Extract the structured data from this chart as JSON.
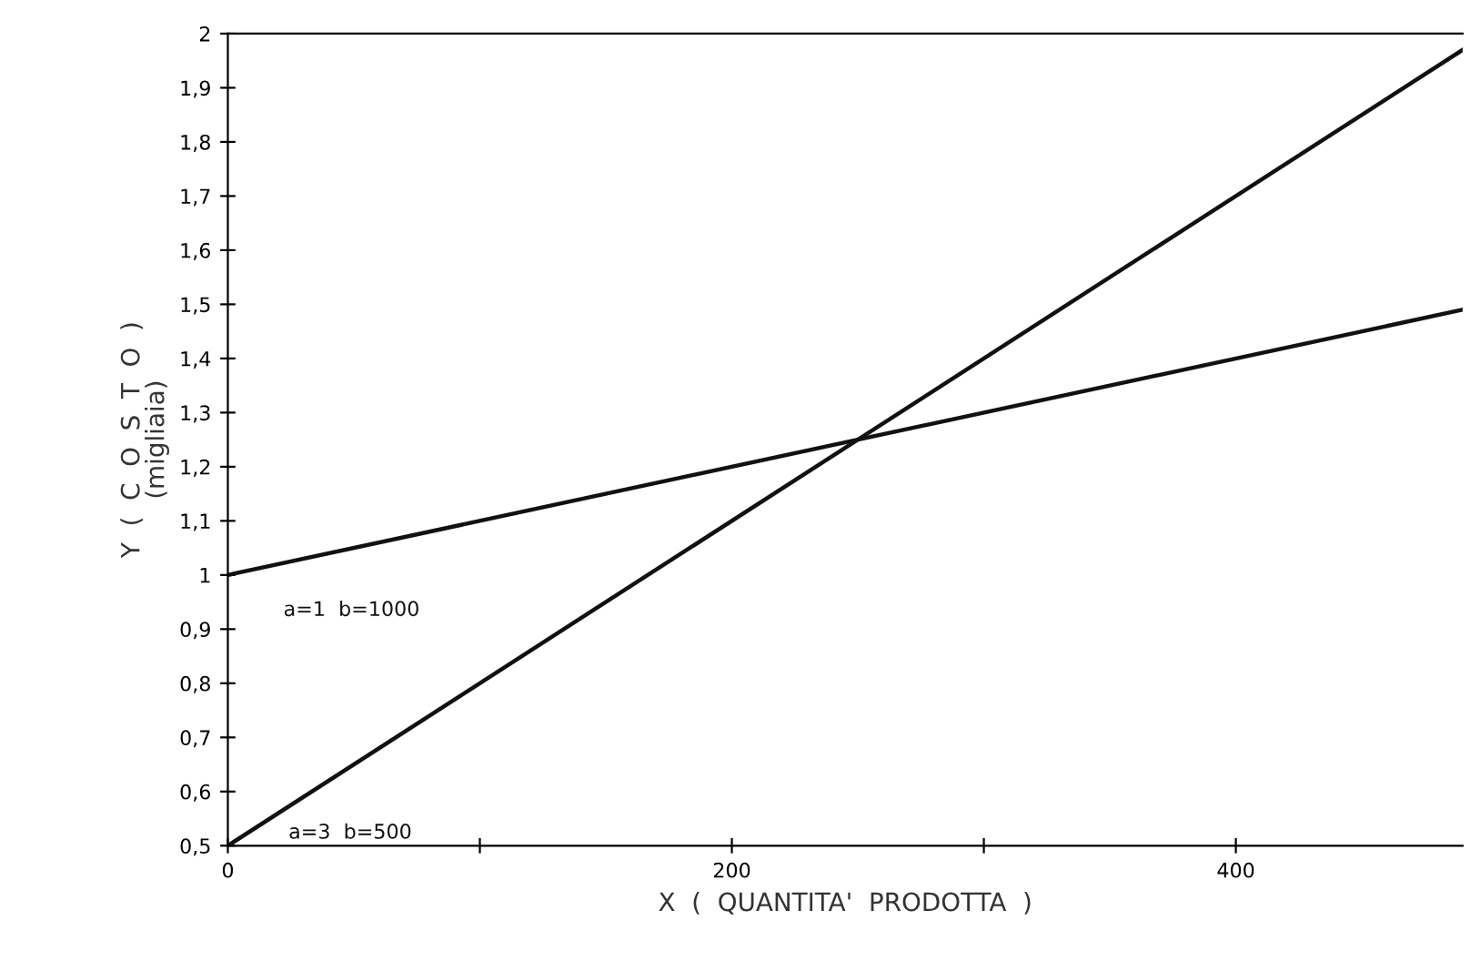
{
  "chart_data": {
    "type": "line",
    "xlabel": "X  (  QUANTITA'  PRODOTTA  )",
    "ylabel": "Y  (  C  O  S  T  O  )\n(migliaia)",
    "x": [
      0,
      490
    ],
    "series": [
      {
        "name": "a=1  b=1000",
        "color": "#111111",
        "values": [
          1.0,
          1.49
        ]
      },
      {
        "name": "a=3  b=500",
        "color": "#111111",
        "values": [
          0.5,
          1.97
        ]
      }
    ],
    "xlim": [
      0,
      490
    ],
    "xticks": [
      0,
      {
        "value": 100,
        "label": null
      },
      200,
      {
        "value": 300,
        "label": null
      },
      400
    ],
    "ylim": [
      0.5,
      2
    ],
    "yticks": [
      {
        "value": 0.5,
        "label": "0,5"
      },
      {
        "value": 0.6,
        "label": "0,6"
      },
      {
        "value": 0.7,
        "label": "0,7"
      },
      {
        "value": 0.8,
        "label": "0,8"
      },
      {
        "value": 0.9,
        "label": "0,9"
      },
      1,
      {
        "value": 1.1,
        "label": "1,1"
      },
      {
        "value": 1.2,
        "label": "1,2"
      },
      {
        "value": 1.3,
        "label": "1,3"
      },
      {
        "value": 1.4,
        "label": "1,4"
      },
      {
        "value": 1.5,
        "label": "1,5"
      },
      {
        "value": 1.6,
        "label": "1,6"
      },
      {
        "value": 1.7,
        "label": "1,7"
      },
      {
        "value": 1.8,
        "label": "1,8"
      },
      {
        "value": 1.9,
        "label": "1,9"
      },
      2
    ],
    "grid": false,
    "legend": false,
    "marker": "none",
    "line_style": "solid"
  }
}
